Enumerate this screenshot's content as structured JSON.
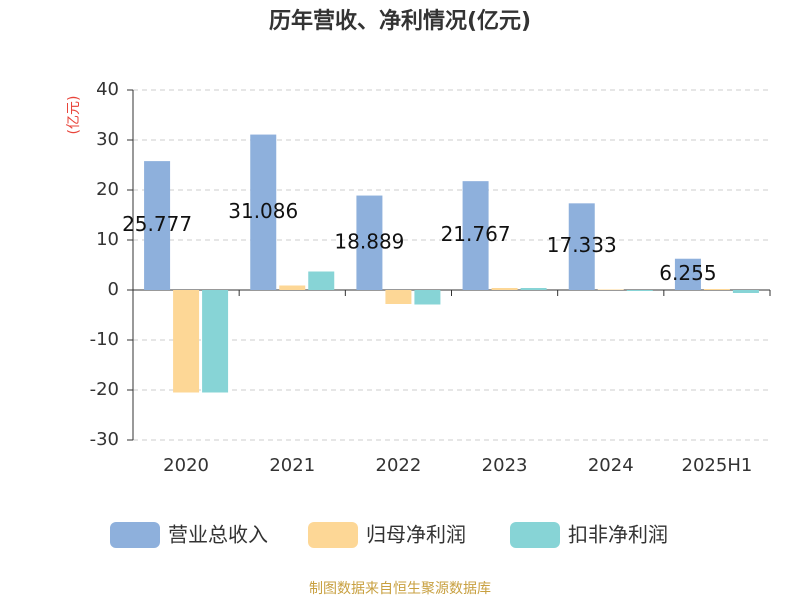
{
  "chart_data": {
    "type": "bar",
    "title": "历年营收、净利情况(亿元)",
    "y_label": "(亿元)",
    "categories": [
      "2020",
      "2021",
      "2022",
      "2023",
      "2024",
      "2025H1"
    ],
    "series": [
      {
        "name": "营业总收入",
        "color": "#8eb0dc",
        "values": [
          25.777,
          31.086,
          18.889,
          21.767,
          17.333,
          6.255
        ],
        "show_labels": true
      },
      {
        "name": "归母净利润",
        "color": "#fdd796",
        "values": [
          -20.5,
          0.9,
          -2.8,
          0.4,
          0.1,
          0.2
        ]
      },
      {
        "name": "扣非净利润",
        "color": "#87d4d6",
        "values": [
          -20.5,
          3.7,
          -2.9,
          0.4,
          -0.2,
          -0.6
        ]
      }
    ],
    "ylim": [
      -30,
      40
    ],
    "yticks": [
      -30,
      -20,
      -10,
      0,
      10,
      20,
      30,
      40
    ],
    "grid": true,
    "legend": "bottom",
    "source": "制图数据来自恒生聚源数据库"
  }
}
